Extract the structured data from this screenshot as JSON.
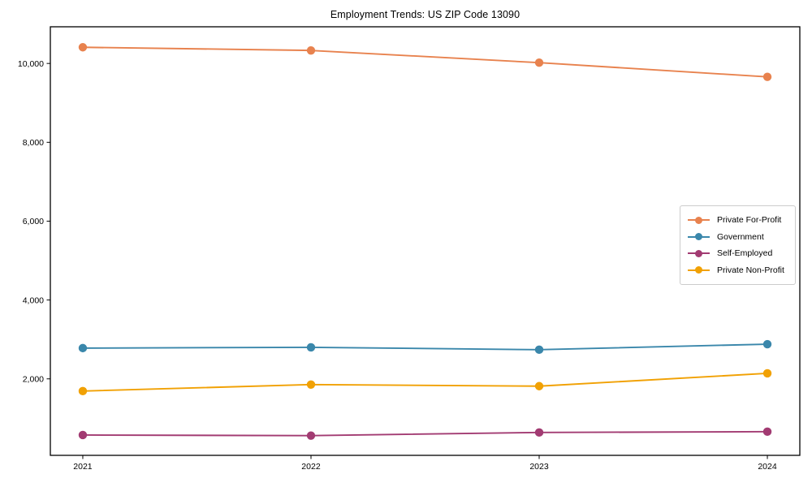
{
  "chart_data": {
    "type": "line",
    "title": "Employment Trends: US ZIP Code 13090",
    "x": [
      "2021",
      "2022",
      "2023",
      "2024"
    ],
    "xlabel": "",
    "ylabel": "",
    "ylim": [
      60,
      10930
    ],
    "yticks": [
      2000,
      4000,
      6000,
      8000,
      10000
    ],
    "y_tick_labels": [
      "2,000",
      "4,000",
      "6,000",
      "8,000",
      "10,000"
    ],
    "grid": false,
    "legend_position": "center right",
    "series": [
      {
        "name": "Private For-Profit",
        "color": "#e8824e",
        "values": [
          10410,
          10330,
          10020,
          9660
        ]
      },
      {
        "name": "Government",
        "color": "#3a87ab",
        "values": [
          2780,
          2800,
          2740,
          2880
        ]
      },
      {
        "name": "Self-Employed",
        "color": "#a23b72",
        "values": [
          575,
          560,
          640,
          660
        ]
      },
      {
        "name": "Private Non-Profit",
        "color": "#f1a104",
        "values": [
          1690,
          1855,
          1815,
          2140
        ]
      }
    ]
  }
}
